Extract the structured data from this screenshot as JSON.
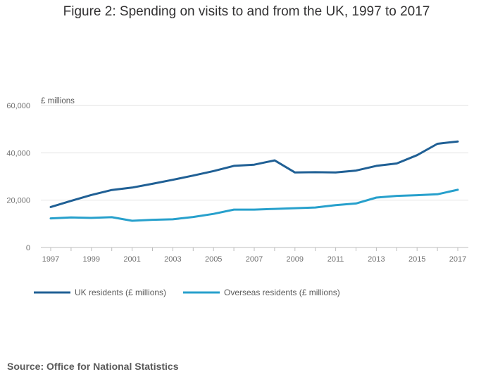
{
  "chart_data": {
    "type": "line",
    "title": "Figure 2: Spending on visits to and from the UK, 1997 to 2017",
    "ylabel": "£ millions",
    "xlabel": "",
    "x": [
      1997,
      1998,
      1999,
      2000,
      2001,
      2002,
      2003,
      2004,
      2005,
      2006,
      2007,
      2008,
      2009,
      2010,
      2011,
      2012,
      2013,
      2014,
      2015,
      2016,
      2017
    ],
    "xticks": [
      "1997",
      "1999",
      "2001",
      "2003",
      "2005",
      "2007",
      "2009",
      "2011",
      "2013",
      "2015",
      "2017"
    ],
    "xlim": [
      1997,
      2017
    ],
    "ylim": [
      0,
      60000
    ],
    "yticks": [
      0,
      20000,
      40000,
      60000
    ],
    "ytick_labels": [
      "0",
      "20,000",
      "40,000",
      "60,000"
    ],
    "grid": true,
    "legend_position": "bottom-left",
    "series": [
      {
        "name": "UK residents (£ millions)",
        "color": "#206095",
        "values": [
          17100,
          19700,
          22200,
          24300,
          25300,
          26900,
          28600,
          30400,
          32300,
          34500,
          35000,
          36800,
          31700,
          31800,
          31700,
          32500,
          34500,
          35500,
          39000,
          43800,
          44800
        ]
      },
      {
        "name": "Overseas residents (£ millions)",
        "color": "#27a0cc",
        "values": [
          12300,
          12700,
          12500,
          12800,
          11300,
          11700,
          11900,
          12900,
          14200,
          16000,
          16000,
          16300,
          16600,
          16900,
          17900,
          18600,
          21100,
          21800,
          22100,
          22500,
          24400
        ]
      }
    ]
  },
  "source": "Source: Office for National Statistics"
}
